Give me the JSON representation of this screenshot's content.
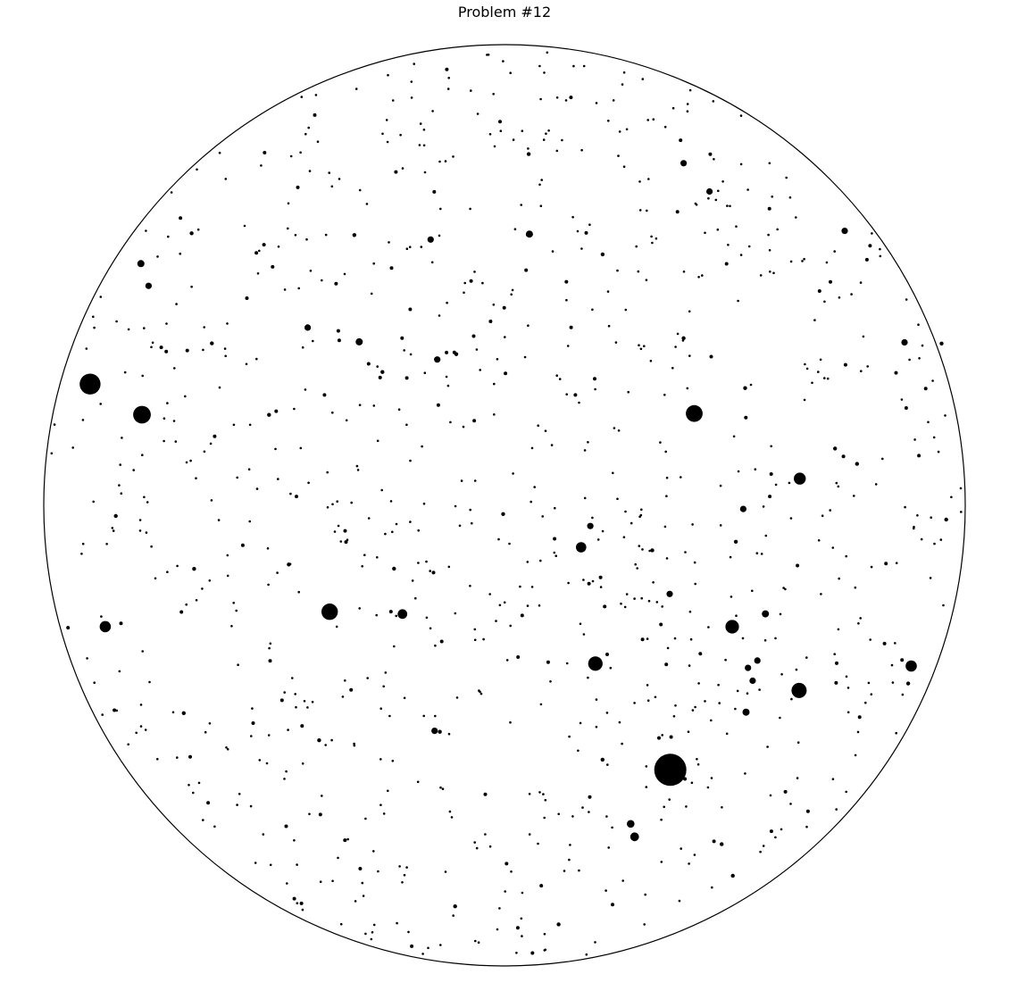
{
  "chart_data": {
    "type": "scatter",
    "title": "Problem #12",
    "xlabel": "",
    "ylabel": "",
    "grid": false,
    "legend": "none",
    "boundary": "circle",
    "colors": {
      "background": "#ffffff",
      "star": "#000000",
      "boundary": "#000000"
    },
    "series": [
      {
        "points": [
          {
            "x": -0.8994,
            "y": 0.2631,
            "mag": 6.5
          },
          {
            "x": -0.7868,
            "y": 0.1967,
            "mag": 5.5
          },
          {
            "x": -0.8665,
            "y": -0.2634,
            "mag": 3.5
          },
          {
            "x": -0.3794,
            "y": -0.2311,
            "mag": 5.1
          },
          {
            "x": -0.2216,
            "y": -0.236,
            "mag": 3.0
          },
          {
            "x": 0.1973,
            "y": -0.3437,
            "mag": 4.5
          },
          {
            "x": 0.3599,
            "y": -0.5743,
            "mag": 10
          },
          {
            "x": 0.4119,
            "y": 0.1992,
            "mag": 5.2
          },
          {
            "x": 0.4941,
            "y": -0.2636,
            "mag": 4.2
          },
          {
            "x": 0.6408,
            "y": 0.058,
            "mag": 3.7
          },
          {
            "x": 0.6393,
            "y": -0.402,
            "mag": 4.7
          },
          {
            "x": 0.8828,
            "y": -0.3489,
            "mag": 3.5
          },
          {
            "x": 0.1663,
            "y": -0.091,
            "mag": 3.2
          },
          {
            "x": 0.2824,
            "y": -0.7196,
            "mag": 2.7
          },
          {
            "x": 0.2739,
            "y": -0.6915,
            "mag": 2.4
          },
          {
            "x": 0.1862,
            "y": -0.045,
            "mag": 2.0
          },
          {
            "x": 0.3585,
            "y": -0.1925,
            "mag": 2.0
          },
          {
            "x": 0.5242,
            "y": -0.449,
            "mag": 2.2
          },
          {
            "x": 0.5662,
            "y": -0.2357,
            "mag": 2.2
          },
          {
            "x": 0.5489,
            "y": -0.3371,
            "mag": 2.0
          },
          {
            "x": 0.5284,
            "y": -0.3529,
            "mag": 2.0
          },
          {
            "x": -0.7892,
            "y": 0.5247,
            "mag": 2.2
          },
          {
            "x": -0.7724,
            "y": 0.4764,
            "mag": 2.0
          },
          {
            "x": -0.4272,
            "y": 0.3859,
            "mag": 2.0
          },
          {
            "x": -0.3153,
            "y": 0.3549,
            "mag": 2.2
          },
          {
            "x": -0.1459,
            "y": 0.3165,
            "mag": 2.0
          },
          {
            "x": -0.1603,
            "y": 0.5769,
            "mag": 2.0
          },
          {
            "x": 0.0541,
            "y": 0.5888,
            "mag": 2.2
          },
          {
            "x": 0.3888,
            "y": 0.7426,
            "mag": 2.0
          },
          {
            "x": 0.4449,
            "y": 0.6812,
            "mag": 2.0
          },
          {
            "x": 0.7383,
            "y": 0.5957,
            "mag": 2.0
          },
          {
            "x": 0.8682,
            "y": 0.3536,
            "mag": 2.0
          },
          {
            "x": 0.5183,
            "y": -0.008,
            "mag": 2.0
          },
          {
            "x": -0.1517,
            "y": -0.4895,
            "mag": 2.0
          },
          {
            "x": 0.5386,
            "y": -0.3808,
            "mag": 2.0
          },
          {
            "x": -0.6791,
            "y": 0.5905,
            "mag": 1.2
          },
          {
            "x": -0.635,
            "y": 0.3515,
            "mag": 1.2
          },
          {
            "x": -0.511,
            "y": 0.1963,
            "mag": 1.2
          },
          {
            "x": -0.326,
            "y": 0.5867,
            "mag": 1.2
          },
          {
            "x": -0.1047,
            "y": 0.3281,
            "mag": 1.2
          },
          {
            "x": 0.0525,
            "y": 0.7625,
            "mag": 1.2
          },
          {
            "x": 0.2129,
            "y": 0.5447,
            "mag": 1.2
          },
          {
            "x": 0.3887,
            "y": 0.3628,
            "mag": 1.2
          },
          {
            "x": 0.5223,
            "y": 0.2544,
            "mag": 1.2
          },
          {
            "x": 0.7174,
            "y": 0.1233,
            "mag": 1.2
          },
          {
            "x": 0.7651,
            "y": 0.09,
            "mag": 1.2
          },
          {
            "x": 0.9486,
            "y": 0.3511,
            "mag": 1.2
          },
          {
            "x": -0.8437,
            "y": -0.0233,
            "mag": 1.2
          },
          {
            "x": -0.6736,
            "y": -0.138,
            "mag": 1.2
          },
          {
            "x": -0.4683,
            "y": -0.1285,
            "mag": 1.2
          },
          {
            "x": -0.2398,
            "y": -0.1376,
            "mag": 1.2
          },
          {
            "x": -0.0029,
            "y": -0.019,
            "mag": 1.2
          },
          {
            "x": 0.3207,
            "y": -0.0977,
            "mag": 1.2
          },
          {
            "x": 0.5021,
            "y": -0.079,
            "mag": 1.2
          },
          {
            "x": -0.6962,
            "y": -0.4512,
            "mag": 1.2
          },
          {
            "x": -0.4023,
            "y": -0.51,
            "mag": 1.2
          },
          {
            "x": -0.1403,
            "y": -0.4917,
            "mag": 1.2
          },
          {
            "x": 0.2128,
            "y": -0.5522,
            "mag": 1.2
          },
          {
            "x": 0.4713,
            "y": -0.7357,
            "mag": 1.2
          },
          {
            "x": 0.4955,
            "y": -0.8041,
            "mag": 1.2
          },
          {
            "x": -0.1072,
            "y": -0.8705,
            "mag": 1.2
          },
          {
            "x": 0.1175,
            "y": -0.9096,
            "mag": 1.2
          },
          {
            "x": 0.8762,
            "y": -0.3868,
            "mag": 1.2
          },
          {
            "x": 0.9587,
            "y": -0.031,
            "mag": 1.2
          },
          {
            "x": -0.265,
            "y": 0.2894,
            "mag": 1.2
          }
        ]
      }
    ],
    "xlim": [
      -1,
      1
    ],
    "ylim": [
      -1,
      1
    ]
  }
}
